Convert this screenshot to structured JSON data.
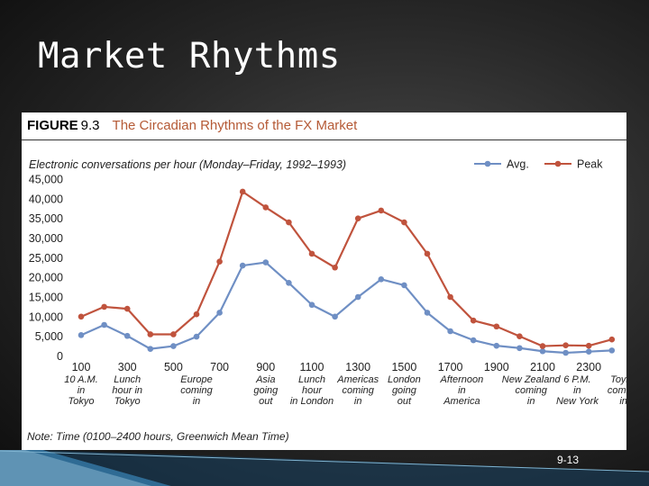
{
  "slide": {
    "title": "Market Rhythms",
    "number": "9-13"
  },
  "figure": {
    "label": "FIGURE",
    "number": "9.3",
    "caption": "The Circadian Rhythms of the FX Market",
    "note": "Note: Time (0100–2400 hours, Greenwich Mean Time)"
  },
  "colors": {
    "avg": "#6f8fc4",
    "peak": "#c0533d",
    "caption": "#b55a36"
  },
  "chart_data": {
    "type": "line",
    "ylabel": "Electronic conversations per hour (Monday–Friday, 1992–1993)",
    "ylim": [
      0,
      45000
    ],
    "y_ticks": [
      "45,000",
      "40,000",
      "35,000",
      "30,000",
      "25,000",
      "20,000",
      "15,000",
      "10,000",
      "5,000",
      "0"
    ],
    "x_ticks": [
      "100",
      "300",
      "500",
      "700",
      "900",
      "1100",
      "1300",
      "1500",
      "1700",
      "1900",
      "2100",
      "2300"
    ],
    "x_hours": [
      1,
      2,
      3,
      4,
      5,
      6,
      7,
      8,
      9,
      10,
      11,
      12,
      13,
      14,
      15,
      16,
      17,
      18,
      19,
      20,
      21,
      22,
      23,
      24
    ],
    "legend_position": "top-right",
    "series": [
      {
        "name": "Avg.",
        "values": [
          5300,
          7900,
          5100,
          1800,
          2500,
          4900,
          11000,
          23000,
          23800,
          18600,
          13000,
          10000,
          15000,
          19500,
          18000,
          11000,
          6300,
          4000,
          2600,
          2000,
          1200,
          800,
          1100,
          1400
        ]
      },
      {
        "name": "Peak",
        "values": [
          10000,
          12500,
          12000,
          5500,
          5500,
          10600,
          24000,
          41800,
          37800,
          34000,
          26000,
          22500,
          35000,
          37000,
          34000,
          26000,
          15000,
          9000,
          7500,
          5000,
          2500,
          2700,
          2600,
          4200
        ]
      }
    ],
    "annotations": [
      {
        "hour": 1,
        "lines": [
          "10 A.M.",
          "in",
          "Tokyo"
        ]
      },
      {
        "hour": 3,
        "lines": [
          "Lunch",
          "hour in",
          "Tokyo"
        ]
      },
      {
        "hour": 6,
        "lines": [
          "Europe",
          "coming",
          "in"
        ]
      },
      {
        "hour": 9,
        "lines": [
          "Asia",
          "going",
          "out"
        ]
      },
      {
        "hour": 11,
        "lines": [
          "Lunch",
          "hour",
          "in London"
        ]
      },
      {
        "hour": 13,
        "lines": [
          "Americas",
          "coming",
          "in"
        ]
      },
      {
        "hour": 15,
        "lines": [
          "London",
          "going",
          "out"
        ]
      },
      {
        "hour": 17.5,
        "lines": [
          "Afternoon",
          "in",
          "America"
        ]
      },
      {
        "hour": 20.5,
        "lines": [
          "New Zealand",
          "coming",
          "in"
        ]
      },
      {
        "hour": 22.5,
        "lines": [
          "6 P.M.",
          "in",
          "New York"
        ]
      },
      {
        "hour": 24.5,
        "lines": [
          "Toyko",
          "coming",
          "in"
        ]
      }
    ]
  }
}
